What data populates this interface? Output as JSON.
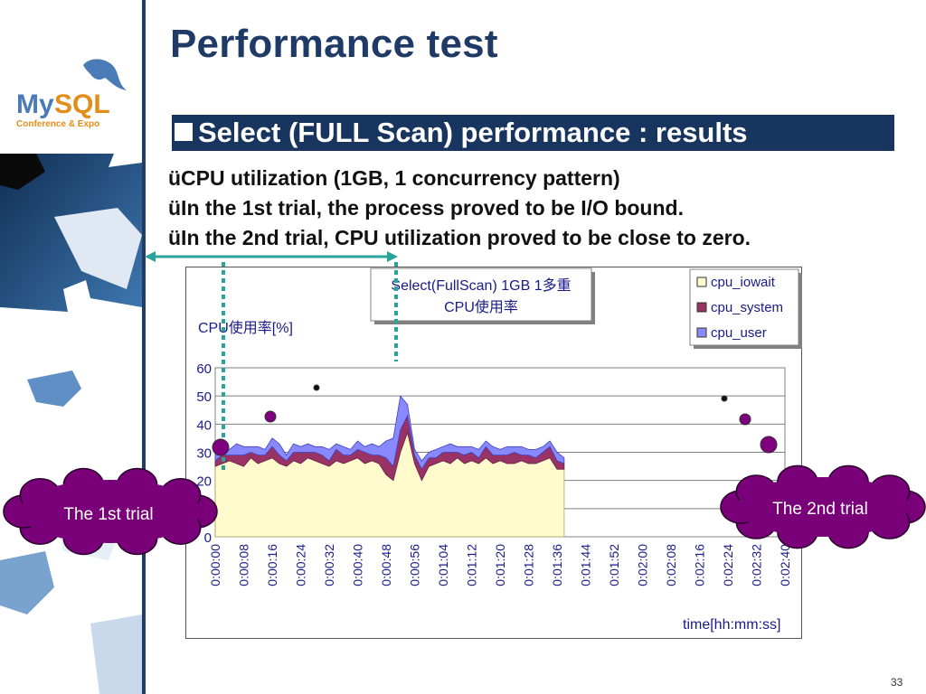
{
  "slide": {
    "title": "Performance test",
    "header": "Select (FULL Scan) performance : results",
    "bullets": [
      "üCPU utilization (1GB, 1 concurrency pattern)",
      "üIn the 1st trial, the process proved to be I/O bound.",
      "üIn the 2nd trial, CPU utilization proved to be close to zero."
    ],
    "page_number": "33",
    "logo": {
      "name": "MySQL",
      "tagline": "Conference & Expo"
    },
    "callouts": {
      "first": "The 1st trial",
      "second": "The 2nd trial"
    }
  },
  "colors": {
    "title": "#1f3a66",
    "header_bg": "#17355e",
    "iowait": "#fffbcc",
    "system": "#993366",
    "user": "#8888ff",
    "callout": "#7a007a",
    "marker": "#7f007f"
  },
  "chart_data": {
    "type": "area",
    "title": "Select(FullScan) 1GB 1多重",
    "subtitle": "CPU使用率",
    "ylabel": "CPU使用率[%]",
    "xlabel": "time[hh:mm:ss]",
    "ylim": [
      0,
      60
    ],
    "yticks": [
      0,
      10,
      20,
      30,
      40,
      50,
      60
    ],
    "xticks": [
      "0:00:00",
      "0:00:08",
      "0:00:16",
      "0:00:24",
      "0:00:32",
      "0:00:40",
      "0:00:48",
      "0:00:56",
      "0:01:04",
      "0:01:12",
      "0:01:20",
      "0:01:28",
      "0:01:36",
      "0:01:44",
      "0:01:52",
      "0:02:00",
      "0:02:08",
      "0:02:16",
      "0:02:24",
      "0:02:32",
      "0:02:40"
    ],
    "grid": true,
    "stacked": true,
    "legend_position": "top-right",
    "x_seconds": [
      0,
      2,
      4,
      6,
      8,
      10,
      12,
      14,
      16,
      18,
      20,
      22,
      24,
      26,
      28,
      30,
      32,
      34,
      36,
      38,
      40,
      42,
      44,
      46,
      48,
      50,
      52,
      54,
      56,
      58,
      60,
      62,
      64,
      66,
      68,
      70,
      72,
      74,
      76,
      78,
      80,
      82,
      84,
      86,
      88,
      90,
      92,
      94,
      96,
      98
    ],
    "series": [
      {
        "name": "cpu_iowait",
        "values": [
          25,
          26,
          27,
          26,
          25,
          28,
          26,
          27,
          28,
          26,
          25,
          27,
          26,
          28,
          27,
          26,
          25,
          27,
          26,
          27,
          28,
          26,
          27,
          26,
          22,
          20,
          30,
          37,
          26,
          20,
          25,
          26,
          27,
          26,
          28,
          26,
          27,
          26,
          28,
          26,
          27,
          26,
          26,
          27,
          26,
          26,
          27,
          28,
          24,
          24
        ]
      },
      {
        "name": "cpu_system",
        "values": [
          2,
          3,
          2,
          3,
          4,
          2,
          3,
          2,
          4,
          3,
          2,
          3,
          4,
          2,
          3,
          3,
          2,
          4,
          3,
          2,
          3,
          4,
          2,
          3,
          6,
          5,
          8,
          6,
          3,
          4,
          3,
          2,
          3,
          4,
          2,
          3,
          3,
          2,
          4,
          3,
          2,
          3,
          4,
          2,
          3,
          2,
          3,
          4,
          3,
          2
        ]
      },
      {
        "name": "cpu_user",
        "values": [
          2,
          3,
          2,
          4,
          3,
          2,
          3,
          2,
          3,
          4,
          2,
          3,
          2,
          3,
          2,
          3,
          4,
          2,
          3,
          2,
          3,
          2,
          4,
          3,
          6,
          10,
          12,
          4,
          2,
          3,
          2,
          3,
          2,
          3,
          2,
          3,
          2,
          3,
          2,
          3,
          2,
          3,
          2,
          3,
          2,
          3,
          2,
          2,
          3,
          2
        ]
      }
    ]
  }
}
